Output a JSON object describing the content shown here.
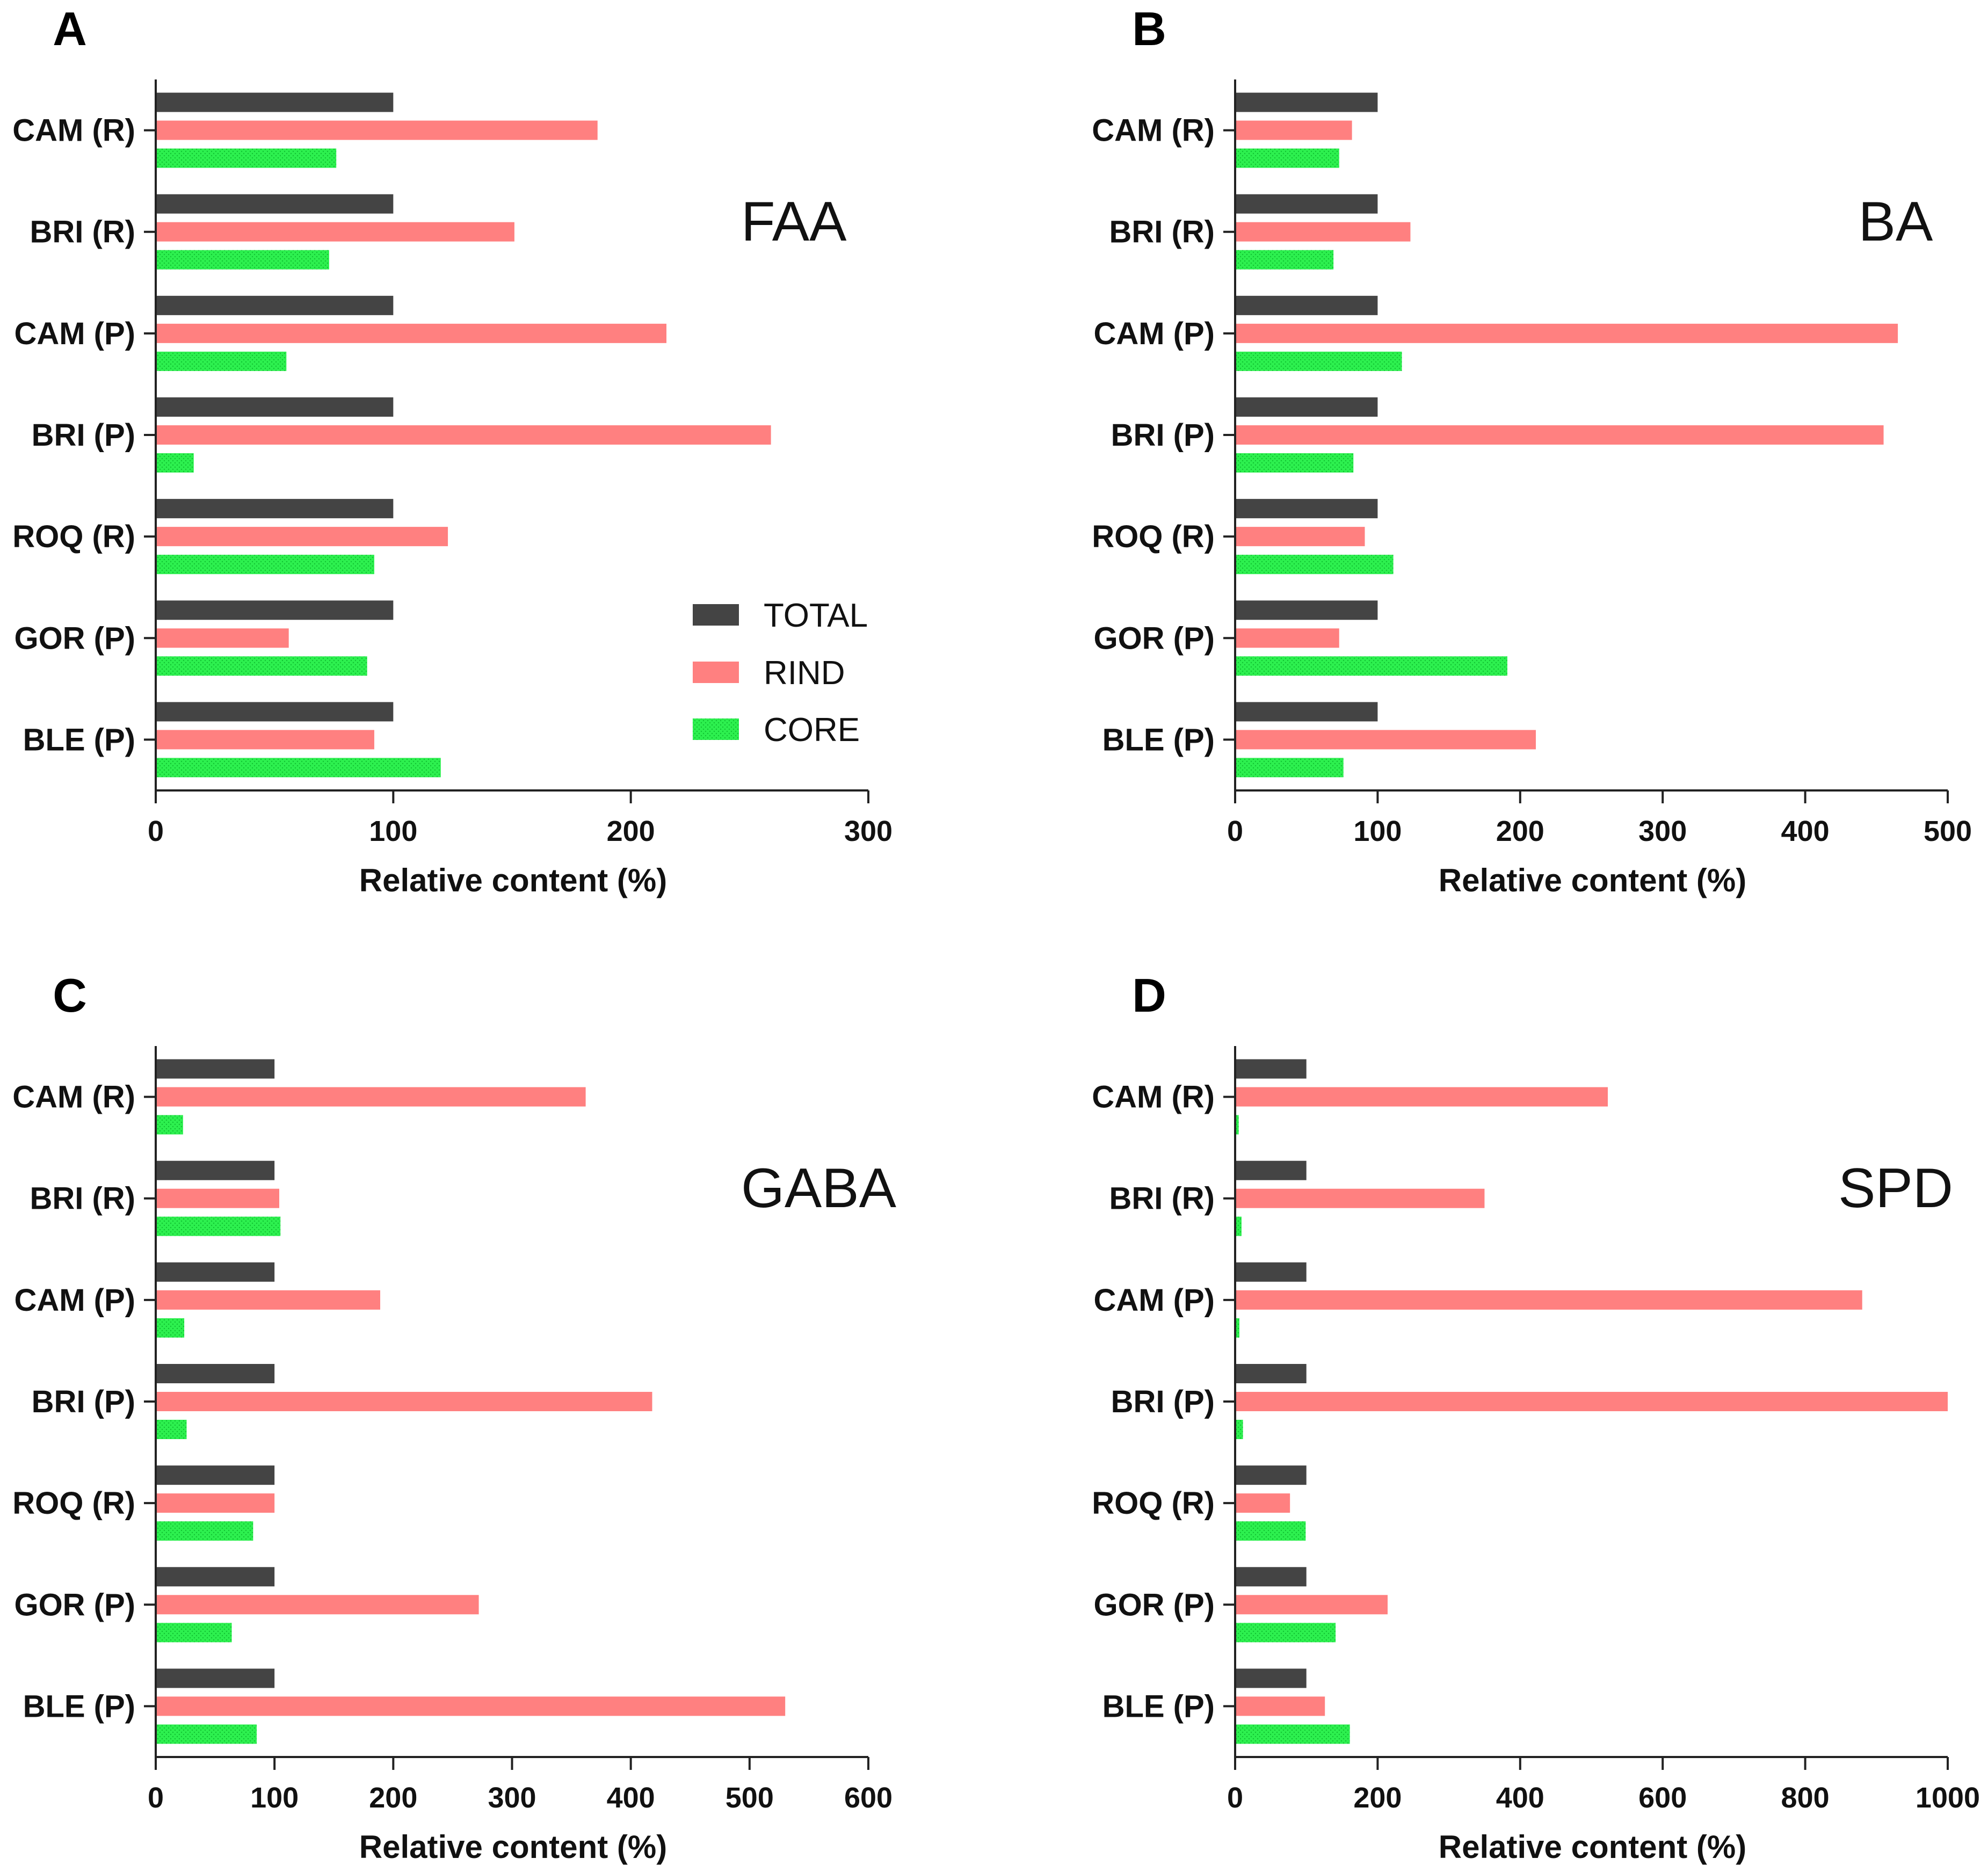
{
  "figure": {
    "legend": [
      {
        "name": "TOTAL",
        "color": "#444444"
      },
      {
        "name": "RIND",
        "color": "#ff8080"
      },
      {
        "name": "CORE",
        "color": "#22ee44"
      }
    ]
  },
  "chart_data": [
    {
      "panel": "A",
      "type": "bar",
      "orientation": "horizontal",
      "title": "FAA",
      "xlabel": "Relative content (%)",
      "ylabel": "",
      "categories": [
        "CAM (R)",
        "BRI (R)",
        "CAM (P)",
        "BRI (P)",
        "ROQ (R)",
        "GOR (P)",
        "BLE (P)"
      ],
      "xlim": [
        0,
        300
      ],
      "xticks": [
        0,
        100,
        200,
        300
      ],
      "series": [
        {
          "name": "TOTAL",
          "values": [
            100,
            100,
            100,
            100,
            100,
            100,
            100
          ]
        },
        {
          "name": "RIND",
          "values": [
            186,
            151,
            215,
            259,
            123,
            56,
            92
          ]
        },
        {
          "name": "CORE",
          "values": [
            76,
            73,
            55,
            16,
            92,
            89,
            120
          ]
        }
      ],
      "legend": "inside, lower-right"
    },
    {
      "panel": "B",
      "type": "bar",
      "orientation": "horizontal",
      "title": "BA",
      "xlabel": "Relative content (%)",
      "ylabel": "",
      "categories": [
        "CAM (R)",
        "BRI (R)",
        "CAM (P)",
        "BRI (P)",
        "ROQ (R)",
        "GOR (P)",
        "BLE (P)"
      ],
      "xlim": [
        0,
        500
      ],
      "xticks": [
        0,
        100,
        200,
        300,
        400,
        500
      ],
      "series": [
        {
          "name": "TOTAL",
          "values": [
            100,
            100,
            100,
            100,
            100,
            100,
            100
          ]
        },
        {
          "name": "RIND",
          "values": [
            82,
            123,
            465,
            455,
            91,
            73,
            211
          ]
        },
        {
          "name": "CORE",
          "values": [
            73,
            69,
            117,
            83,
            111,
            191,
            76
          ]
        }
      ]
    },
    {
      "panel": "C",
      "type": "bar",
      "orientation": "horizontal",
      "title": "GABA",
      "xlabel": "Relative content (%)",
      "ylabel": "",
      "categories": [
        "CAM (R)",
        "BRI (R)",
        "CAM (P)",
        "BRI (P)",
        "ROQ (R)",
        "GOR (P)",
        "BLE (P)"
      ],
      "xlim": [
        0,
        600
      ],
      "xticks": [
        0,
        100,
        200,
        300,
        400,
        500,
        600
      ],
      "series": [
        {
          "name": "TOTAL",
          "values": [
            100,
            100,
            100,
            100,
            100,
            100,
            100
          ]
        },
        {
          "name": "RIND",
          "values": [
            362,
            104,
            189,
            418,
            100,
            272,
            530
          ]
        },
        {
          "name": "CORE",
          "values": [
            23,
            105,
            24,
            26,
            82,
            64,
            85
          ]
        }
      ]
    },
    {
      "panel": "D",
      "type": "bar",
      "orientation": "horizontal",
      "title": "SPD",
      "xlabel": "Relative content (%)",
      "ylabel": "",
      "categories": [
        "CAM (R)",
        "BRI (R)",
        "CAM (P)",
        "BRI (P)",
        "ROQ (R)",
        "GOR (P)",
        "BLE (P)"
      ],
      "xlim": [
        0,
        1000
      ],
      "xticks": [
        0,
        200,
        400,
        600,
        800,
        1000
      ],
      "series": [
        {
          "name": "TOTAL",
          "values": [
            100,
            100,
            100,
            100,
            100,
            100,
            100
          ]
        },
        {
          "name": "RIND",
          "values": [
            523,
            350,
            880,
            1000,
            77,
            214,
            126
          ]
        },
        {
          "name": "CORE",
          "values": [
            5,
            9,
            6,
            11,
            99,
            141,
            161
          ]
        }
      ]
    }
  ]
}
